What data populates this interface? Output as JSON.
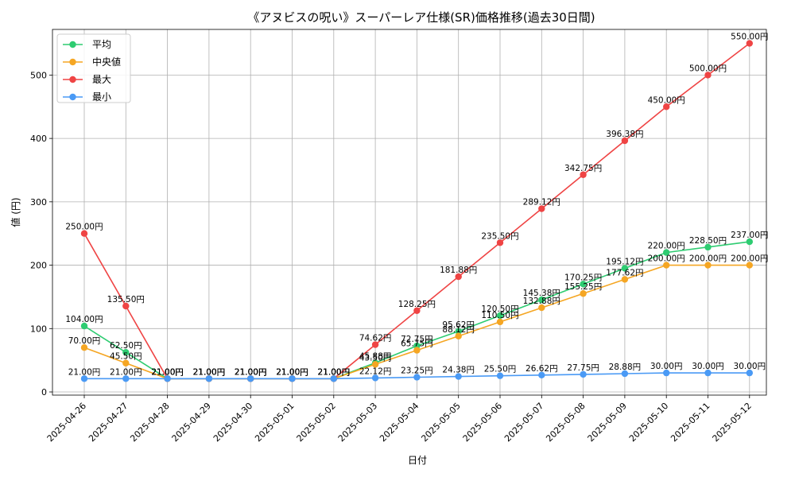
{
  "chart_data": {
    "type": "line",
    "title": "《アヌビスの呪い》スーパーレア仕様(SR)価格推移(過去30日間)",
    "xlabel": "日付",
    "ylabel": "値 (円)",
    "categories": [
      "2025-04-26",
      "2025-04-27",
      "2025-04-28",
      "2025-04-29",
      "2025-04-30",
      "2025-05-01",
      "2025-05-02",
      "2025-05-03",
      "2025-05-04",
      "2025-05-05",
      "2025-05-06",
      "2025-05-07",
      "2025-05-08",
      "2025-05-09",
      "2025-05-10",
      "2025-05-11",
      "2025-05-12"
    ],
    "ylim": [
      -5,
      572
    ],
    "yticks": [
      0,
      100,
      200,
      300,
      400,
      500
    ],
    "grid": true,
    "legend_position": "top-left",
    "label_suffix": "円",
    "series": [
      {
        "name": "平均",
        "color": "#2ecc71",
        "values": [
          104.0,
          62.5,
          21.0,
          21.0,
          21.0,
          21.0,
          21.0,
          45.88,
          72.75,
          95.62,
          120.5,
          145.38,
          170.25,
          195.12,
          220.0,
          228.5,
          237.0
        ]
      },
      {
        "name": "中央値",
        "color": "#f5a623",
        "values": [
          70.0,
          45.5,
          21.0,
          21.0,
          21.0,
          21.0,
          21.0,
          43.5,
          65.75,
          88.12,
          110.5,
          132.88,
          155.25,
          177.62,
          200.0,
          200.0,
          200.0
        ]
      },
      {
        "name": "最大",
        "color": "#ef4444",
        "values": [
          250.0,
          135.5,
          21.0,
          21.0,
          21.0,
          21.0,
          21.0,
          74.62,
          128.25,
          181.88,
          235.5,
          289.12,
          342.75,
          396.38,
          450.0,
          500.0,
          550.0
        ]
      },
      {
        "name": "最小",
        "color": "#4a9af5",
        "values": [
          21.0,
          21.0,
          21.0,
          21.0,
          21.0,
          21.0,
          21.0,
          22.12,
          23.25,
          24.38,
          25.5,
          26.62,
          27.75,
          28.88,
          30.0,
          30.0,
          30.0
        ]
      }
    ]
  }
}
